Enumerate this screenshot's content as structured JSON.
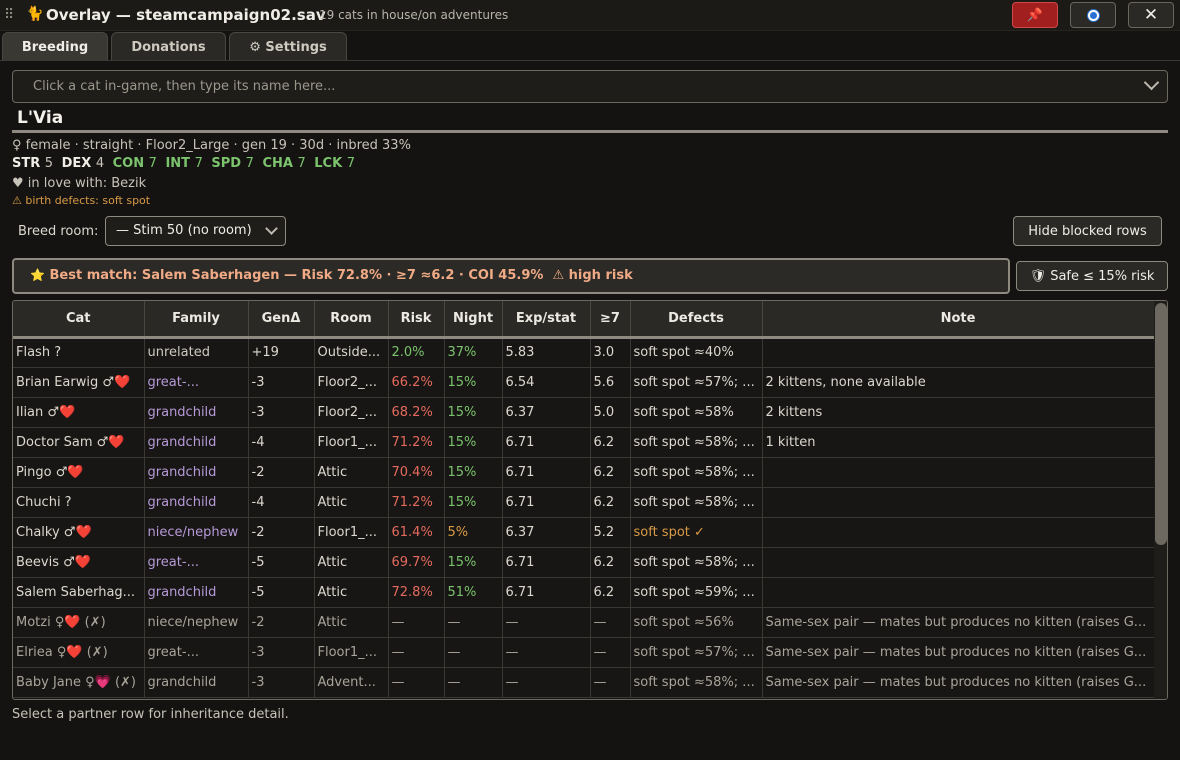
{
  "titlebar": {
    "grip": "⠿",
    "icon": "🐈",
    "title": "Overlay — steamcampaign02.sav",
    "subtitle": "19 cats in house/on adventures",
    "pin": "📌",
    "close": "✕"
  },
  "tabs": [
    {
      "label": "Breeding"
    },
    {
      "label": "Donations"
    },
    {
      "label": "⚙ Settings"
    }
  ],
  "search": {
    "placeholder": "Click a cat in-game, then type its name here..."
  },
  "cat": {
    "name": "L'Via",
    "info": "♀ female · straight · Floor2_Large · gen 19 · 30d · inbred 33%",
    "stats": [
      {
        "k": "STR",
        "v": "5",
        "good": false
      },
      {
        "k": "DEX",
        "v": "4",
        "good": false
      },
      {
        "k": "CON",
        "v": "7",
        "good": true
      },
      {
        "k": "INT",
        "v": "7",
        "good": true
      },
      {
        "k": "SPD",
        "v": "7",
        "good": true
      },
      {
        "k": "CHA",
        "v": "7",
        "good": true
      },
      {
        "k": "LCK",
        "v": "7",
        "good": true
      }
    ],
    "love": "♥ in love with: Bezik",
    "defects": "⚠ birth defects: soft spot"
  },
  "breed_room": {
    "label": "Breed room:",
    "value": "— Stim 50 (no room)"
  },
  "hide_blocked": "Hide blocked rows",
  "best_match": {
    "star": "⭐",
    "text": "Best match: Salem Saberhagen — Risk 72.8% · ≥7 ≈6.2 · COI 45.9%",
    "warn": "⚠ high risk"
  },
  "safe_button": "🛡 Safe ≤ 15% risk",
  "table": {
    "headers": [
      "Cat",
      "Family",
      "GenΔ",
      "Room",
      "Risk",
      "Night",
      "Exp/stat",
      "≥7",
      "Defects",
      "Note"
    ],
    "rows": [
      {
        "cat": "Flash ?",
        "family": "unrelated",
        "gen": "+19",
        "room": "Outside...",
        "risk": "2.0%",
        "night": "37%",
        "exp": "5.83",
        "ge7": "3.0",
        "defects": "soft spot ≈40%",
        "note": "",
        "blocked": false
      },
      {
        "cat": "Brian Earwig ♂❤️",
        "family": "great-...",
        "gen": "-3",
        "room": "Floor2_...",
        "risk": "66.2%",
        "night": "15%",
        "exp": "6.54",
        "ge7": "5.6",
        "defects": "soft spot ≈57%; ...",
        "note": "2 kittens, none available",
        "blocked": false
      },
      {
        "cat": "Ilian ♂❤️",
        "family": "grandchild",
        "gen": "-3",
        "room": "Floor2_...",
        "risk": "68.2%",
        "night": "15%",
        "exp": "6.37",
        "ge7": "5.0",
        "defects": "soft spot ≈58%",
        "note": "2 kittens",
        "blocked": false
      },
      {
        "cat": "Doctor Sam ♂❤️",
        "family": "grandchild",
        "gen": "-4",
        "room": "Floor1_...",
        "risk": "71.2%",
        "night": "15%",
        "exp": "6.71",
        "ge7": "6.2",
        "defects": "soft spot ≈58%; ...",
        "note": "1 kitten",
        "blocked": false
      },
      {
        "cat": "Pingo ♂❤️",
        "family": "grandchild",
        "gen": "-2",
        "room": "Attic",
        "risk": "70.4%",
        "night": "15%",
        "exp": "6.71",
        "ge7": "6.2",
        "defects": "soft spot ≈58%; ...",
        "note": "",
        "blocked": false
      },
      {
        "cat": "Chuchi ?",
        "family": "grandchild",
        "gen": "-4",
        "room": "Attic",
        "risk": "71.2%",
        "night": "15%",
        "exp": "6.71",
        "ge7": "6.2",
        "defects": "soft spot ≈58%; ...",
        "note": "",
        "blocked": false
      },
      {
        "cat": "Chalky ♂❤️",
        "family": "niece/nephew",
        "gen": "-2",
        "room": "Floor1_...",
        "risk": "61.4%",
        "night": "5%",
        "exp": "6.37",
        "ge7": "5.2",
        "defects": "soft spot ✓",
        "note": "",
        "blocked": false
      },
      {
        "cat": "Beevis ♂❤️",
        "family": "great-...",
        "gen": "-5",
        "room": "Attic",
        "risk": "69.7%",
        "night": "15%",
        "exp": "6.71",
        "ge7": "6.2",
        "defects": "soft spot ≈58%; ...",
        "note": "",
        "blocked": false
      },
      {
        "cat": "Salem Saberhag...",
        "family": "grandchild",
        "gen": "-5",
        "room": "Attic",
        "risk": "72.8%",
        "night": "51%",
        "exp": "6.71",
        "ge7": "6.2",
        "defects": "soft spot ≈59%; ...",
        "note": "",
        "blocked": false
      },
      {
        "cat": "Motzi ♀❤️ (✗)",
        "family": "niece/nephew",
        "gen": "-2",
        "room": "Attic",
        "risk": "—",
        "night": "—",
        "exp": "—",
        "ge7": "—",
        "defects": "soft spot ≈56%",
        "note": "Same-sex pair — mates but produces no kitten (raises G...",
        "blocked": true
      },
      {
        "cat": "Elriea ♀❤️ (✗)",
        "family": "great-...",
        "gen": "-3",
        "room": "Floor1_...",
        "risk": "—",
        "night": "—",
        "exp": "—",
        "ge7": "—",
        "defects": "soft spot ≈57%; ...",
        "note": "Same-sex pair — mates but produces no kitten (raises G...",
        "blocked": true
      },
      {
        "cat": "Baby Jane ♀💗 (✗)",
        "family": "grandchild",
        "gen": "-3",
        "room": "Advent...",
        "risk": "—",
        "night": "—",
        "exp": "—",
        "ge7": "—",
        "defects": "soft spot ≈58%; ...",
        "note": "Same-sex pair — mates but produces no kitten (raises G...",
        "blocked": true
      }
    ]
  },
  "footer": "Select a partner row for inheritance detail.",
  "colors": {
    "accent_red": "#a11f1f",
    "risk_high": "#e56a5e",
    "good_green": "#7cc36d",
    "family_purple": "#b79ad9",
    "warn_orange": "#d99a45"
  }
}
